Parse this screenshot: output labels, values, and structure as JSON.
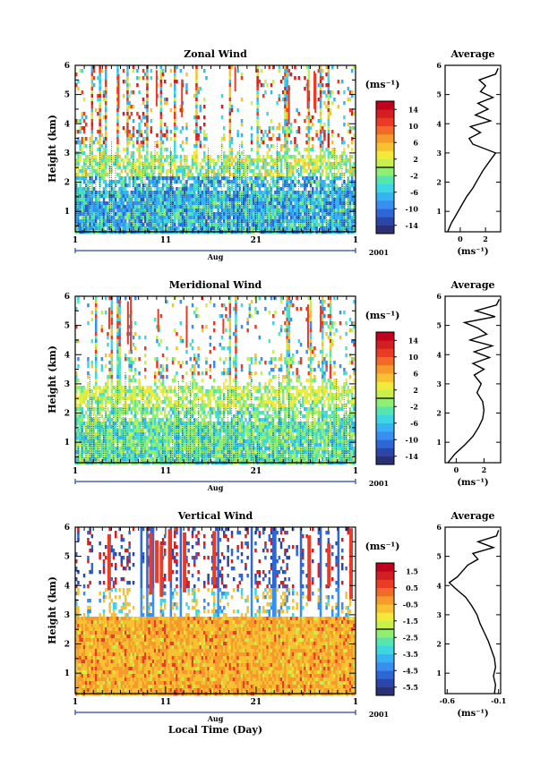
{
  "chart_data": {
    "type": "heatmap",
    "x_ticks": [
      "1",
      "11",
      "21",
      "1"
    ],
    "month_label": "Aug",
    "year_label": "2001",
    "xlabel": "Local Time (Day)",
    "ylabel": "Height (km)",
    "ylim": [
      0.3,
      6
    ],
    "y_ticks": [
      "1",
      "2",
      "3",
      "4",
      "5",
      "6"
    ],
    "colorbar_unit": "(ms⁻¹)",
    "profile_title": "Average",
    "profile_unit": "(ms⁻¹)",
    "panels": [
      {
        "title": "Zonal Wind",
        "colorbar_ticks": [
          "14",
          "10",
          "6",
          "2",
          "-2",
          "-6",
          "-10",
          "-14"
        ],
        "colorbar_range": [
          -16,
          16
        ],
        "profile_xlim": [
          -1.2,
          3.2
        ],
        "profile_x_ticks": [
          "0",
          "2"
        ],
        "profile_x_tick_values": [
          0,
          2
        ],
        "profile": {
          "height": [
            0.3,
            0.6,
            0.9,
            1.2,
            1.5,
            1.8,
            2.1,
            2.4,
            2.7,
            3.0,
            3.3,
            3.5,
            3.7,
            3.9,
            4.1,
            4.3,
            4.5,
            4.7,
            4.9,
            5.1,
            5.3,
            5.5,
            5.7,
            5.9
          ],
          "speed": [
            -1.0,
            -0.7,
            -0.3,
            0.1,
            0.5,
            1.0,
            1.4,
            1.8,
            2.3,
            2.8,
            1.0,
            0.7,
            1.6,
            0.8,
            2.4,
            1.2,
            2.2,
            1.4,
            2.6,
            1.6,
            2.0,
            1.5,
            2.8,
            3.0
          ]
        }
      },
      {
        "title": "Meridional Wind",
        "colorbar_ticks": [
          "14",
          "10",
          "6",
          "2",
          "-2",
          "-6",
          "-10",
          "-14"
        ],
        "colorbar_range": [
          -16,
          16
        ],
        "profile_xlim": [
          -0.8,
          3.2
        ],
        "profile_x_ticks": [
          "0",
          "2"
        ],
        "profile_x_tick_values": [
          0,
          2
        ],
        "profile": {
          "height": [
            0.3,
            0.6,
            0.9,
            1.2,
            1.5,
            1.8,
            2.1,
            2.4,
            2.7,
            3.0,
            3.3,
            3.5,
            3.7,
            3.9,
            4.1,
            4.3,
            4.5,
            4.7,
            4.9,
            5.1,
            5.3,
            5.5,
            5.7,
            5.9
          ],
          "speed": [
            -0.6,
            -0.1,
            0.6,
            1.2,
            1.6,
            1.9,
            2.0,
            1.9,
            1.5,
            1.8,
            1.3,
            2.0,
            1.2,
            2.4,
            1.3,
            2.6,
            1.0,
            2.2,
            1.6,
            0.6,
            2.8,
            1.4,
            2.9,
            3.1
          ]
        }
      },
      {
        "title": "Vertical Wind",
        "colorbar_ticks": [
          "1.5",
          "0.5",
          "-0.5",
          "-1.5",
          "-2.5",
          "-3.5",
          "-4.5",
          "-5.5"
        ],
        "colorbar_range": [
          -6,
          2
        ],
        "profile_xlim": [
          -0.62,
          -0.08
        ],
        "profile_x_ticks": [
          "-0.6",
          "-0.1"
        ],
        "profile_x_tick_values": [
          -0.6,
          -0.1
        ],
        "profile": {
          "height": [
            0.3,
            0.6,
            0.9,
            1.2,
            1.5,
            1.8,
            2.1,
            2.4,
            2.7,
            3.0,
            3.3,
            3.6,
            3.9,
            4.1,
            4.3,
            4.5,
            4.7,
            4.9,
            5.1,
            5.3,
            5.5,
            5.7,
            5.9
          ],
          "speed": [
            -0.14,
            -0.13,
            -0.15,
            -0.13,
            -0.14,
            -0.17,
            -0.2,
            -0.24,
            -0.28,
            -0.31,
            -0.36,
            -0.42,
            -0.52,
            -0.58,
            -0.5,
            -0.45,
            -0.4,
            -0.3,
            -0.35,
            -0.15,
            -0.3,
            -0.12,
            -0.1
          ]
        }
      }
    ]
  }
}
